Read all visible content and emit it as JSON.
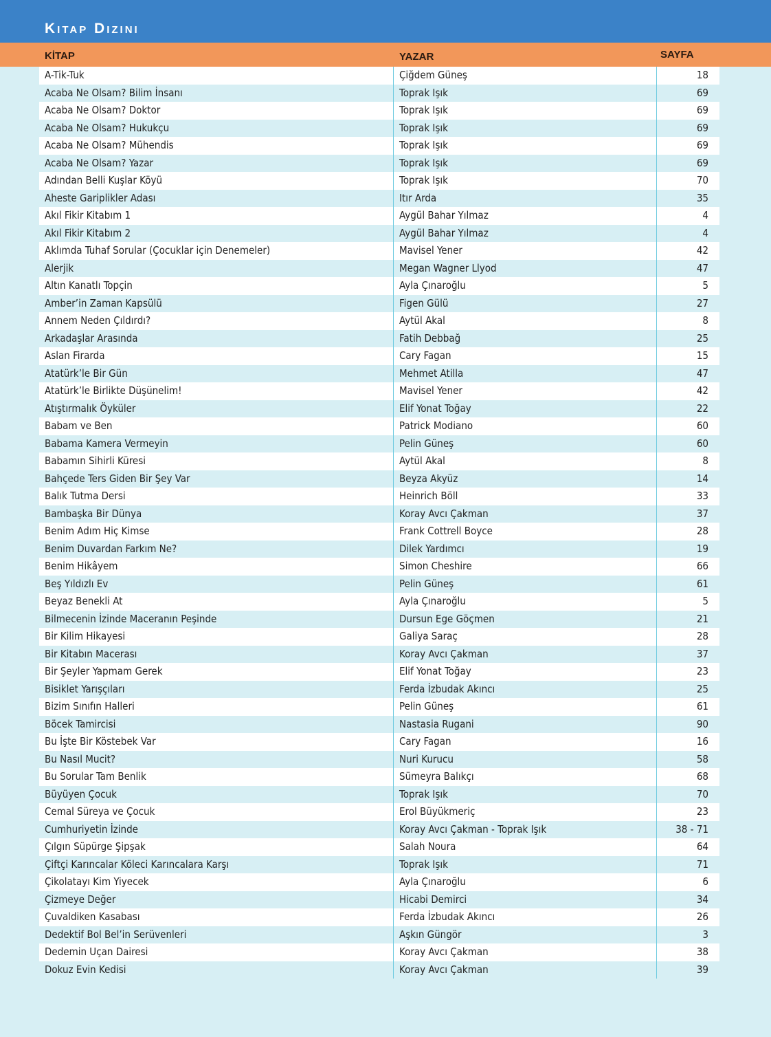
{
  "title": "Kitap Dizini",
  "columns": {
    "book": "KİTAP",
    "author": "YAZAR",
    "page": "SAYFA"
  },
  "colors": {
    "header_blue": "#3b82c8",
    "header_orange": "#f2975a",
    "row_alt": "#d7eff4"
  },
  "rows": [
    [
      "A-Tik-Tuk",
      "Çiğdem Güneş",
      "18"
    ],
    [
      "Acaba Ne Olsam? Bilim İnsanı",
      "Toprak Işık",
      "69"
    ],
    [
      "Acaba Ne Olsam? Doktor",
      "Toprak Işık",
      "69"
    ],
    [
      "Acaba Ne Olsam? Hukukçu",
      "Toprak Işık",
      "69"
    ],
    [
      "Acaba Ne Olsam? Mühendis",
      "Toprak Işık",
      "69"
    ],
    [
      "Acaba Ne Olsam? Yazar",
      "Toprak Işık",
      "69"
    ],
    [
      "Adından Belli Kuşlar Köyü",
      "Toprak Işık",
      "70"
    ],
    [
      "Aheste Gariplikler Adası",
      "Itır Arda",
      "35"
    ],
    [
      "Akıl Fikir Kitabım 1",
      "Aygül Bahar Yılmaz",
      "4"
    ],
    [
      "Akıl Fikir Kitabım 2",
      "Aygül Bahar Yılmaz",
      "4"
    ],
    [
      "Aklımda Tuhaf Sorular (Çocuklar için Denemeler)",
      "Mavisel Yener",
      "42"
    ],
    [
      "Alerjik",
      "Megan Wagner Llyod",
      "47"
    ],
    [
      "Altın Kanatlı Topçin",
      "Ayla Çınaroğlu",
      "5"
    ],
    [
      "Amber’in Zaman Kapsülü",
      "Figen Gülü",
      "27"
    ],
    [
      "Annem Neden Çıldırdı?",
      "Aytül Akal",
      "8"
    ],
    [
      "Arkadaşlar Arasında",
      "Fatih Debbağ",
      "25"
    ],
    [
      "Aslan Firarda",
      "Cary Fagan",
      "15"
    ],
    [
      "Atatürk’le Bir Gün",
      "Mehmet Atilla",
      "47"
    ],
    [
      "Atatürk’le Birlikte Düşünelim!",
      "Mavisel Yener",
      "42"
    ],
    [
      "Atıştırmalık Öyküler",
      "Elif Yonat Toğay",
      "22"
    ],
    [
      "Babam ve Ben",
      "Patrick Modiano",
      "60"
    ],
    [
      "Babama Kamera Vermeyin",
      "Pelin Güneş",
      "60"
    ],
    [
      "Babamın Sihirli Küresi",
      "Aytül Akal",
      "8"
    ],
    [
      "Bahçede Ters Giden Bir Şey Var",
      "Beyza Akyüz",
      "14"
    ],
    [
      "Balık Tutma Dersi",
      "Heinrich Böll",
      "33"
    ],
    [
      "Bambaşka Bir Dünya",
      "Koray Avcı Çakman",
      "37"
    ],
    [
      "Benim Adım Hiç Kimse",
      "Frank Cottrell Boyce",
      "28"
    ],
    [
      "Benim Duvardan Farkım Ne?",
      "Dilek Yardımcı",
      "19"
    ],
    [
      "Benim Hikâyem",
      "Simon Cheshire",
      "66"
    ],
    [
      "Beş Yıldızlı Ev",
      "Pelin Güneş",
      "61"
    ],
    [
      "Beyaz Benekli At",
      "Ayla Çınaroğlu",
      "5"
    ],
    [
      "Bilmecenin İzinde Maceranın Peşinde",
      "Dursun Ege Göçmen",
      "21"
    ],
    [
      "Bir Kilim Hikayesi",
      "Galiya Saraç",
      "28"
    ],
    [
      "Bir Kitabın Macerası",
      "Koray Avcı Çakman",
      "37"
    ],
    [
      "Bir Şeyler Yapmam Gerek",
      "Elif Yonat Toğay",
      "23"
    ],
    [
      "Bisiklet Yarışçıları",
      "Ferda İzbudak Akıncı",
      "25"
    ],
    [
      "Bizim Sınıfın Halleri",
      "Pelin Güneş",
      "61"
    ],
    [
      "Böcek Tamircisi",
      "Nastasia Rugani",
      "90"
    ],
    [
      "Bu İşte Bir Köstebek Var",
      "Cary Fagan",
      "16"
    ],
    [
      "Bu Nasıl Mucit?",
      "Nuri Kurucu",
      "58"
    ],
    [
      "Bu Sorular Tam Benlik",
      "Sümeyra Balıkçı",
      "68"
    ],
    [
      "Büyüyen Çocuk",
      "Toprak Işık",
      "70"
    ],
    [
      "Cemal Süreya ve Çocuk",
      "Erol Büyükmeriç",
      "23"
    ],
    [
      "Cumhuriyetin İzinde",
      "Koray Avcı Çakman - Toprak Işık",
      "38 - 71"
    ],
    [
      "Çılgın Süpürge Şipşak",
      "Salah Noura",
      "64"
    ],
    [
      "Çiftçi Karıncalar Köleci Karıncalara Karşı",
      "Toprak Işık",
      "71"
    ],
    [
      "Çikolatayı Kim Yiyecek",
      "Ayla Çınaroğlu",
      "6"
    ],
    [
      "Çizmeye Değer",
      "Hicabi Demirci",
      "34"
    ],
    [
      "Çuvaldiken Kasabası",
      "Ferda İzbudak Akıncı",
      "26"
    ],
    [
      "Dedektif Bol Bel’in Serüvenleri",
      "Aşkın Güngör",
      "3"
    ],
    [
      "Dedemin Uçan Dairesi",
      "Koray Avcı Çakman",
      "38"
    ],
    [
      "Dokuz Evin Kedisi",
      "Koray Avcı Çakman",
      "39"
    ]
  ]
}
